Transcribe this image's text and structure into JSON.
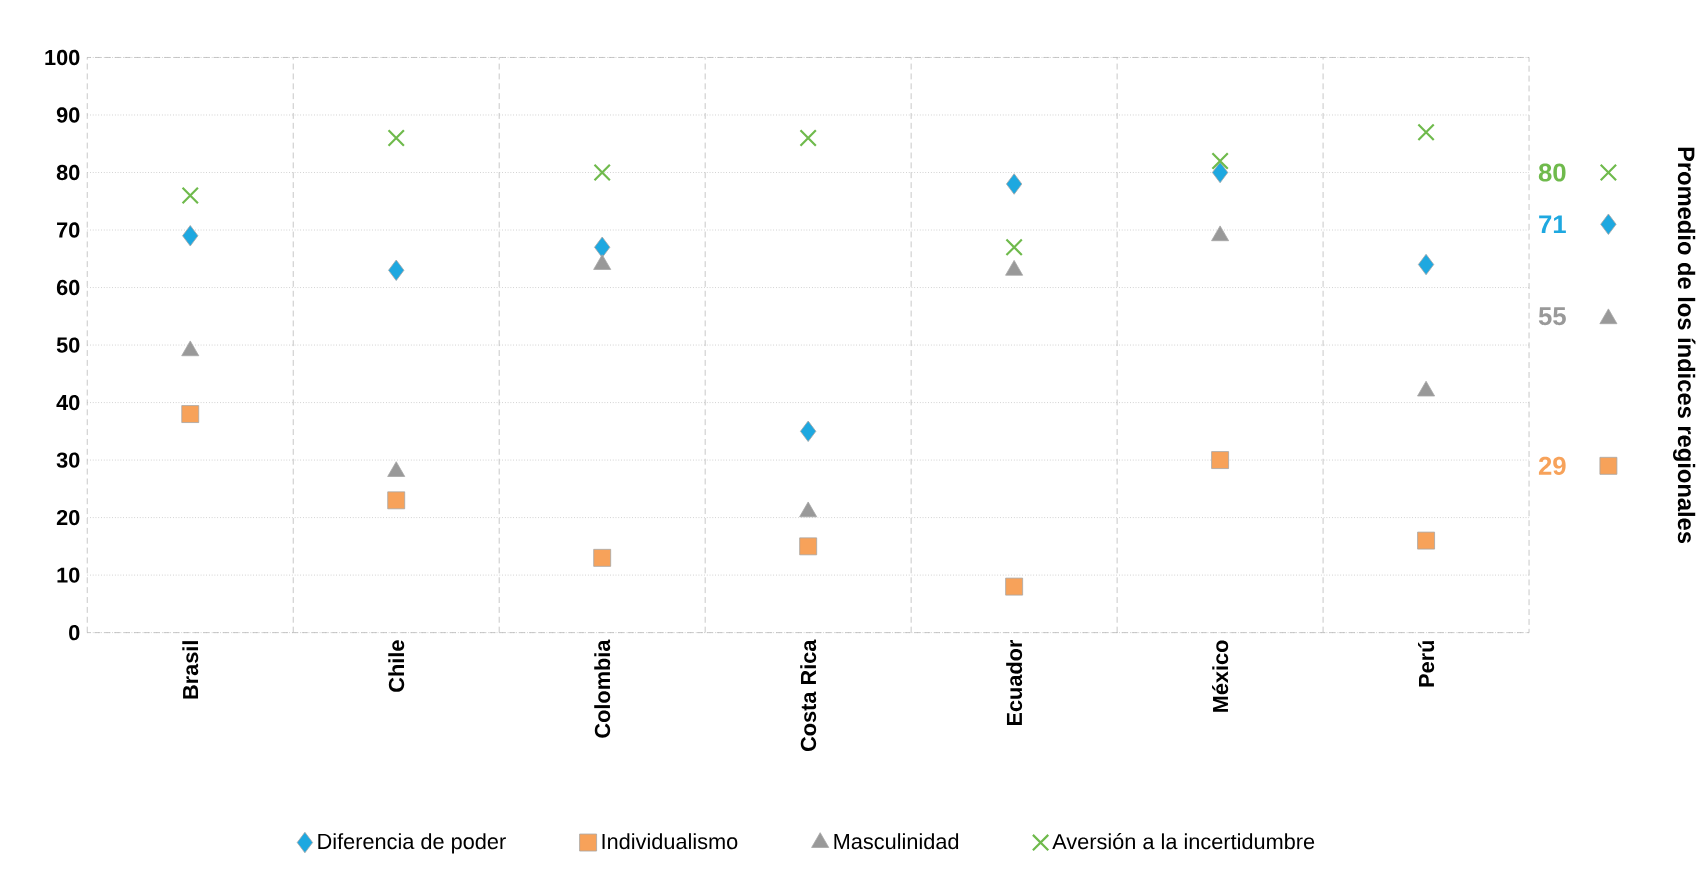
{
  "chart_data": {
    "type": "scatter",
    "categories": [
      "Brasil",
      "Chile",
      "Colombia",
      "Costa Rica",
      "Ecuador",
      "México",
      "Perú"
    ],
    "series": [
      {
        "name": "Diferencia de poder",
        "color": "#1ea8e0",
        "marker": "diamond",
        "values": [
          69,
          63,
          67,
          35,
          78,
          80,
          64
        ]
      },
      {
        "name": "Individualismo",
        "color": "#f7a25a",
        "marker": "square",
        "values": [
          38,
          23,
          13,
          15,
          8,
          30,
          16
        ]
      },
      {
        "name": "Masculinidad",
        "color": "#999999",
        "marker": "triangle",
        "values": [
          49,
          28,
          64,
          21,
          63,
          69,
          42
        ]
      },
      {
        "name": "Aversión a la incertidumbre",
        "color": "#6fba4c",
        "marker": "cross",
        "values": [
          76,
          86,
          80,
          86,
          67,
          82,
          87
        ]
      }
    ],
    "ylim": [
      0,
      100
    ],
    "yticks": [
      0,
      10,
      20,
      30,
      40,
      50,
      60,
      70,
      80,
      90,
      100
    ],
    "y2label": "Promedio de los índices regionales",
    "y2lim": [
      0,
      100
    ],
    "y2ticks": [
      71,
      29,
      55,
      80
    ],
    "grid": true,
    "legend": "bottom"
  }
}
